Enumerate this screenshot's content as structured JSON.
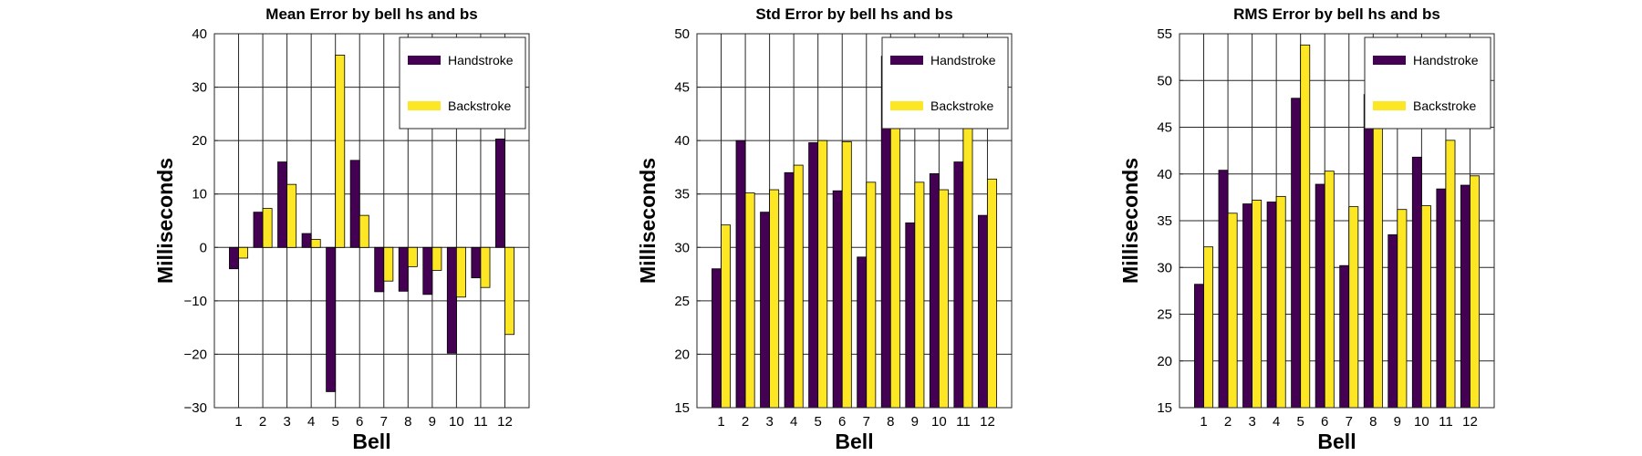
{
  "chart_data": [
    {
      "type": "bar",
      "title": "Mean Error by bell hs and bs",
      "xlabel": "Bell",
      "ylabel": "Milliseconds",
      "categories": [
        "1",
        "2",
        "3",
        "4",
        "5",
        "6",
        "7",
        "8",
        "9",
        "10",
        "11",
        "12"
      ],
      "ylim": [
        -30,
        40
      ],
      "yticks": [
        -30,
        -20,
        -10,
        0,
        10,
        20,
        30,
        40
      ],
      "ytick_labels": [
        "−30",
        "−20",
        "−10",
        "0",
        "10",
        "20",
        "30",
        "40"
      ],
      "grid": true,
      "legend_position": "top-right",
      "series": [
        {
          "name": "Handstroke",
          "color": "#440154",
          "values": [
            -4,
            6.6,
            16,
            2.6,
            -27,
            16.3,
            -8.3,
            -8.2,
            -8.8,
            -19.8,
            -5.7,
            20.3
          ]
        },
        {
          "name": "Backstroke",
          "color": "#fde725",
          "values": [
            -2,
            7.3,
            11.8,
            1.5,
            36,
            6,
            -6.3,
            -3.6,
            -4.3,
            -9.3,
            -7.5,
            -16.3
          ]
        }
      ]
    },
    {
      "type": "bar",
      "title": "Std Error by bell hs and bs",
      "xlabel": "Bell",
      "ylabel": "Milliseconds",
      "categories": [
        "1",
        "2",
        "3",
        "4",
        "5",
        "6",
        "7",
        "8",
        "9",
        "10",
        "11",
        "12"
      ],
      "ylim": [
        15,
        50
      ],
      "yticks": [
        15,
        20,
        25,
        30,
        35,
        40,
        45,
        50
      ],
      "ytick_labels": [
        "15",
        "20",
        "25",
        "30",
        "35",
        "40",
        "45",
        "50"
      ],
      "grid": true,
      "legend_position": "top-right",
      "series": [
        {
          "name": "Handstroke",
          "color": "#440154",
          "values": [
            28,
            40,
            33.3,
            37,
            39.8,
            35.3,
            29.1,
            47.9,
            32.3,
            36.9,
            38,
            33
          ]
        },
        {
          "name": "Backstroke",
          "color": "#fde725",
          "values": [
            32.1,
            35.1,
            35.4,
            37.7,
            40,
            39.9,
            36.1,
            48.4,
            36.1,
            35.4,
            43.1,
            36.4
          ]
        }
      ]
    },
    {
      "type": "bar",
      "title": "RMS Error by bell hs and bs",
      "xlabel": "Bell",
      "ylabel": "Milliseconds",
      "categories": [
        "1",
        "2",
        "3",
        "4",
        "5",
        "6",
        "7",
        "8",
        "9",
        "10",
        "11",
        "12"
      ],
      "ylim": [
        15,
        55
      ],
      "yticks": [
        15,
        20,
        25,
        30,
        35,
        40,
        45,
        50,
        55
      ],
      "ytick_labels": [
        "15",
        "20",
        "25",
        "30",
        "35",
        "40",
        "45",
        "50",
        "55"
      ],
      "grid": true,
      "legend_position": "top-right",
      "series": [
        {
          "name": "Handstroke",
          "color": "#440154",
          "values": [
            28.2,
            40.4,
            36.8,
            37,
            48.1,
            38.9,
            30.2,
            48.5,
            33.5,
            41.8,
            38.4,
            38.8
          ]
        },
        {
          "name": "Backstroke",
          "color": "#fde725",
          "values": [
            32.2,
            35.8,
            37.2,
            37.6,
            53.8,
            40.3,
            36.5,
            48.5,
            36.2,
            36.6,
            43.6,
            39.8
          ]
        }
      ]
    }
  ]
}
